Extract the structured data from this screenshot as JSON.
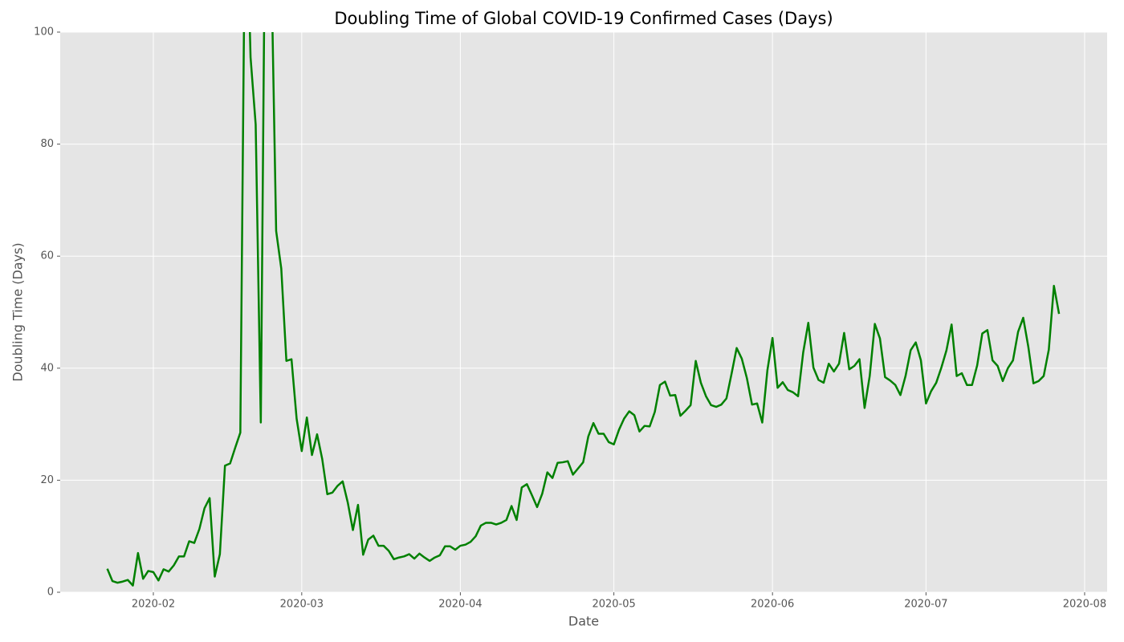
{
  "chart_data": {
    "type": "line",
    "title": "Doubling Time of Global COVID-19 Confirmed Cases (Days)",
    "x_label": "Date",
    "y_label": "Doubling Time (Days)",
    "categories": [
      null,
      null,
      null,
      null,
      null,
      null,
      null,
      null,
      null,
      "2020-02",
      null,
      null,
      null,
      null,
      null,
      null,
      null,
      null,
      null,
      null,
      null,
      null,
      null,
      null,
      null,
      null,
      null,
      null,
      null,
      null,
      null,
      null,
      null,
      null,
      null,
      null,
      null,
      null,
      "2020-03",
      null,
      null,
      null,
      null,
      null,
      null,
      null,
      null,
      null,
      null,
      null,
      null,
      null,
      null,
      null,
      null,
      null,
      null,
      null,
      null,
      null,
      null,
      null,
      null,
      null,
      null,
      null,
      null,
      null,
      null,
      "2020-04",
      null,
      null,
      null,
      null,
      null,
      null,
      null,
      null,
      null,
      null,
      null,
      null,
      null,
      null,
      null,
      null,
      null,
      null,
      null,
      null,
      null,
      null,
      null,
      null,
      null,
      null,
      null,
      null,
      null,
      "2020-05",
      null,
      null,
      null,
      null,
      null,
      null,
      null,
      null,
      null,
      null,
      null,
      null,
      null,
      null,
      null,
      null,
      null,
      null,
      null,
      null,
      null,
      null,
      null,
      null,
      null,
      null,
      null,
      null,
      null,
      null,
      "2020-06",
      null,
      null,
      null,
      null,
      null,
      null,
      null,
      null,
      null,
      null,
      null,
      null,
      null,
      null,
      null,
      null,
      null,
      null,
      null,
      null,
      null,
      null,
      null,
      null,
      null,
      null,
      null,
      null,
      null,
      "2020-07",
      null,
      null,
      null,
      null,
      null,
      null,
      null,
      null,
      null,
      null,
      null,
      null,
      null,
      null,
      null,
      null,
      null,
      null,
      null,
      null,
      null,
      null,
      null,
      null,
      null,
      null,
      null,
      null,
      null,
      null,
      "2020-08"
    ],
    "series": [
      {
        "name": "Doubling Time",
        "color": "#008000",
        "values": [
          4.2,
          2.0,
          1.7,
          1.9,
          2.2,
          1.2,
          7.0,
          2.4,
          3.8,
          3.6,
          2.1,
          4.1,
          3.7,
          4.8,
          6.4,
          6.4,
          9.1,
          8.8,
          11.3,
          15.0,
          16.8,
          2.8,
          6.8,
          22.6,
          23.0,
          25.8,
          28.5,
          130,
          95.5,
          83.5,
          30.3,
          140,
          115,
          64.5,
          57.8,
          41.3,
          41.6,
          31.0,
          25.2,
          31.2,
          24.5,
          28.2,
          23.8,
          17.5,
          17.8,
          19.0,
          19.8,
          16.0,
          11.1,
          15.6,
          6.7,
          9.4,
          10.1,
          8.3,
          8.3,
          7.4,
          5.9,
          6.2,
          6.4,
          6.8,
          6.0,
          6.9,
          6.2,
          5.6,
          6.2,
          6.6,
          8.2,
          8.2,
          7.6,
          8.3,
          8.5,
          9.0,
          10.0,
          11.9,
          12.4,
          12.4,
          12.1,
          12.4,
          12.9,
          15.4,
          12.9,
          18.7,
          19.3,
          17.3,
          15.2,
          17.6,
          21.4,
          20.4,
          23.1,
          23.2,
          23.4,
          21.0,
          22.1,
          23.2,
          27.8,
          30.2,
          28.3,
          28.3,
          26.8,
          26.4,
          29.0,
          31.0,
          32.3,
          31.6,
          28.7,
          29.7,
          29.6,
          32.2,
          37.0,
          37.6,
          35.1,
          35.2,
          31.5,
          32.4,
          33.4,
          41.3,
          37.4,
          35.0,
          33.4,
          33.1,
          33.5,
          34.6,
          39.0,
          43.6,
          41.7,
          38.2,
          33.5,
          33.7,
          30.3,
          39.6,
          45.4,
          36.5,
          37.5,
          36.1,
          35.7,
          35.0,
          42.8,
          48.1,
          40.1,
          37.9,
          37.4,
          40.8,
          39.4,
          40.8,
          46.3,
          39.8,
          40.4,
          41.6,
          32.9,
          38.6,
          47.9,
          45.3,
          38.4,
          37.8,
          37.0,
          35.2,
          38.6,
          43.2,
          44.6,
          41.4,
          33.7,
          35.9,
          37.4,
          40.1,
          43.2,
          47.8,
          38.6,
          39.1,
          37.0,
          37.0,
          40.5,
          46.2,
          46.8,
          41.4,
          40.4,
          37.7,
          40.0,
          41.4,
          46.5,
          49.0,
          43.8,
          37.3,
          37.7,
          38.6,
          43.3,
          54.7,
          49.7,
          null,
          null,
          null,
          null,
          null
        ]
      }
    ],
    "ylim": [
      0,
      100
    ],
    "yticks": [
      0,
      20,
      40,
      60,
      80,
      100
    ],
    "grid": true
  }
}
